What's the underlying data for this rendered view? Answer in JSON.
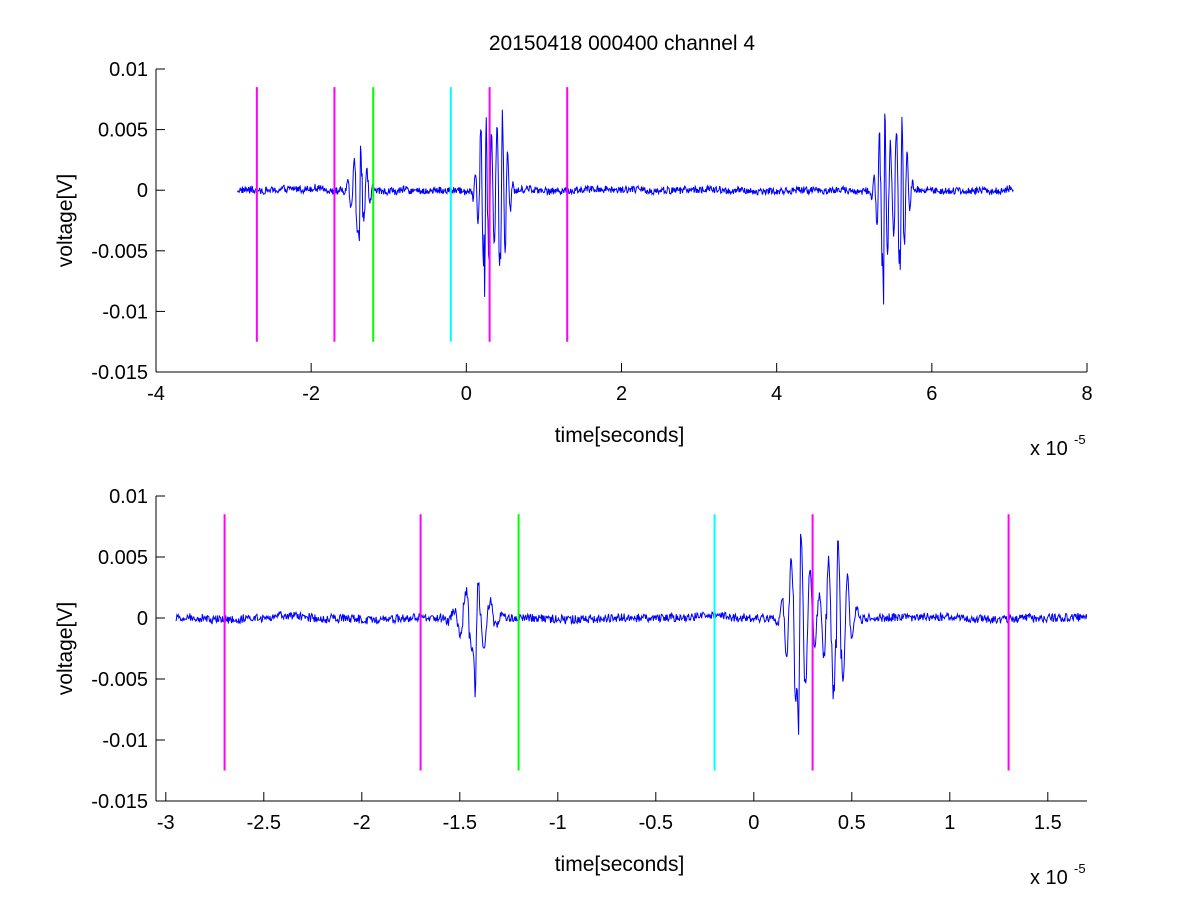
{
  "figure": {
    "title": "20150418 000400 channel 4"
  },
  "chart_data": [
    {
      "type": "line",
      "title": "20150418 000400 channel 4",
      "xlabel": "time[seconds]",
      "ylabel": "voltage[V]",
      "x_exponent_label": "x 10",
      "x_exponent_power": "-5",
      "xlim": [
        -4,
        8
      ],
      "ylim": [
        -0.015,
        0.01
      ],
      "xticks": [
        -4,
        -2,
        0,
        2,
        4,
        6,
        8
      ],
      "xtick_labels": [
        "-4",
        "-2",
        "0",
        "2",
        "4",
        "6",
        "8"
      ],
      "yticks": [
        0.01,
        0.005,
        0,
        -0.005,
        -0.01,
        -0.015
      ],
      "ytick_labels": [
        "0.01",
        "0.005",
        "0",
        "-0.005",
        "-0.01",
        "-0.015"
      ],
      "grid": false,
      "signal": {
        "color": "#0000ff",
        "x_range": [
          -2.95,
          7.05
        ],
        "noise_amplitude": 0.0003,
        "bursts": [
          {
            "t": -1.38,
            "amp": 0.0035,
            "neg_peak": -0.0068,
            "width": 0.12
          },
          {
            "t": 0.24,
            "amp": 0.0068,
            "neg_peak": -0.0105,
            "width": 0.1
          },
          {
            "t": 0.45,
            "amp": 0.0065,
            "neg_peak": -0.0045,
            "width": 0.1
          },
          {
            "t": 5.38,
            "amp": 0.0065,
            "neg_peak": -0.0115,
            "width": 0.1
          },
          {
            "t": 5.6,
            "amp": 0.0065,
            "neg_peak": -0.0065,
            "width": 0.1
          }
        ]
      },
      "markers": [
        {
          "x": -2.7,
          "color": "#ff00ff"
        },
        {
          "x": -1.7,
          "color": "#ff00ff"
        },
        {
          "x": -1.2,
          "color": "#00ff00"
        },
        {
          "x": -0.2,
          "color": "#00ffff"
        },
        {
          "x": 0.3,
          "color": "#ff00ff"
        },
        {
          "x": 1.3,
          "color": "#ff00ff"
        }
      ],
      "marker_y_range": [
        -0.0125,
        0.0085
      ]
    },
    {
      "type": "line",
      "xlabel": "time[seconds]",
      "ylabel": "voltage[V]",
      "x_exponent_label": "x 10",
      "x_exponent_power": "-5",
      "xlim": [
        -3.05,
        1.7
      ],
      "ylim": [
        -0.015,
        0.01
      ],
      "xticks": [
        -3,
        -2.5,
        -2,
        -1.5,
        -1,
        -0.5,
        0,
        0.5,
        1,
        1.5
      ],
      "xtick_labels": [
        "-3",
        "-2.5",
        "-2",
        "-1.5",
        "-1",
        "-0.5",
        "0",
        "0.5",
        "1",
        "1.5"
      ],
      "yticks": [
        0.01,
        0.005,
        0,
        -0.005,
        -0.01,
        -0.015
      ],
      "ytick_labels": [
        "0.01",
        "0.005",
        "0",
        "-0.005",
        "-0.01",
        "-0.015"
      ],
      "grid": false,
      "signal": {
        "color": "#0000ff",
        "x_range": [
          -2.95,
          1.7
        ],
        "noise_amplitude": 0.00035,
        "bursts": [
          {
            "t": -1.42,
            "amp": 0.003,
            "neg_peak": -0.0068,
            "width": 0.09
          },
          {
            "t": 0.23,
            "amp": 0.007,
            "neg_peak": -0.0105,
            "width": 0.07
          },
          {
            "t": 0.42,
            "amp": 0.0067,
            "neg_peak": -0.0045,
            "width": 0.07
          }
        ]
      },
      "markers": [
        {
          "x": -2.7,
          "color": "#ff00ff"
        },
        {
          "x": -1.7,
          "color": "#ff00ff"
        },
        {
          "x": -1.2,
          "color": "#00ff00"
        },
        {
          "x": -0.2,
          "color": "#00ffff"
        },
        {
          "x": 0.3,
          "color": "#ff00ff"
        },
        {
          "x": 1.3,
          "color": "#ff00ff"
        }
      ],
      "marker_y_range": [
        -0.0125,
        0.0085
      ]
    }
  ]
}
